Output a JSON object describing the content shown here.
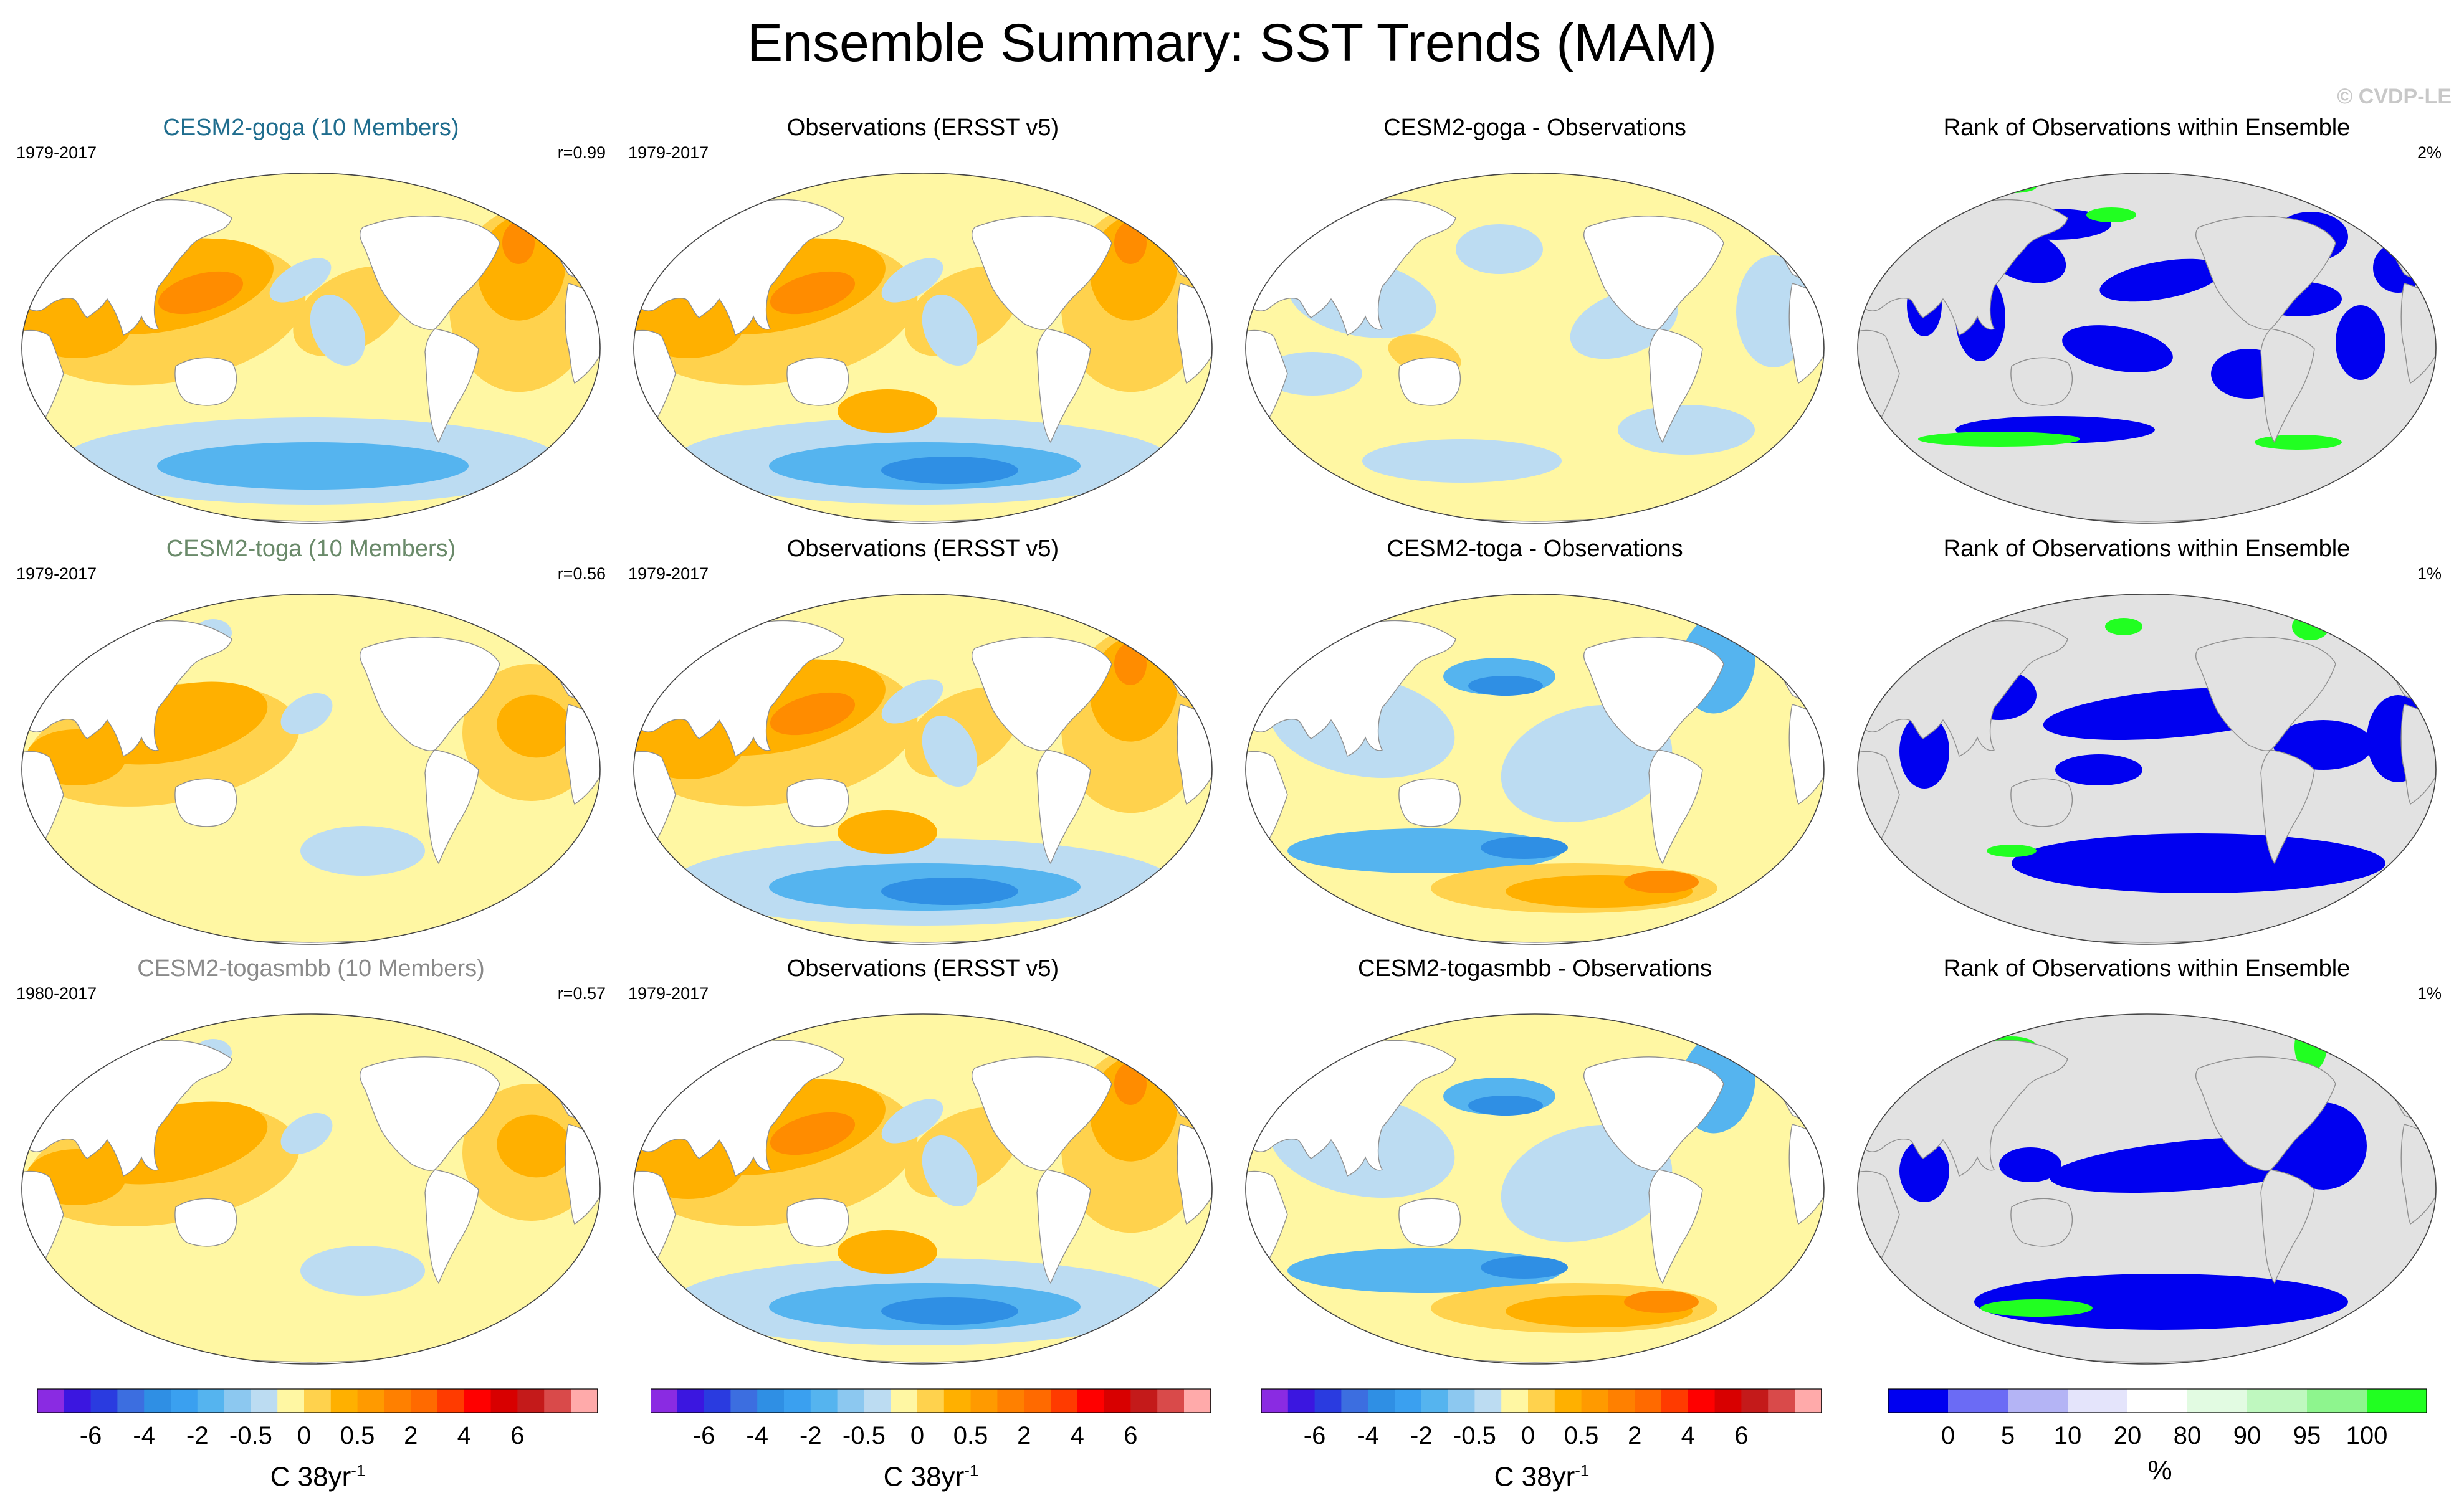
{
  "title": "Ensemble Summary: SST Trends (MAM)",
  "watermark": "© CVDP-LE",
  "colors": {
    "ocean_base": "#fff7a3",
    "warm_light": "#ffd24d",
    "warm_mid": "#ffb000",
    "warm_deep": "#ff8c00",
    "warm_hot": "#ff6a00",
    "cool_light": "#bcdcf2",
    "cool_mid": "#55b4ef",
    "cool_deep": "#2f8fe4",
    "rank_land": "#e2e2e2",
    "rank_low": "#0000f0",
    "rank_high": "#21ff21",
    "coast": "#8f8f8f"
  },
  "rows": [
    {
      "panels": [
        {
          "title": "CESM2-goga (10 Members)",
          "title_color": "#1f6d8e",
          "left": "1979-2017",
          "right": "r=0.99",
          "kind": "trend",
          "pattern": "model_warm"
        },
        {
          "title": "Observations (ERSST v5)",
          "title_color": "#000000",
          "left": "1979-2017",
          "right": "",
          "kind": "trend",
          "pattern": "obs"
        },
        {
          "title": "CESM2-goga - Observations",
          "title_color": "#000000",
          "left": "",
          "right": "",
          "kind": "trend",
          "pattern": "diff_small"
        },
        {
          "title": "Rank of Observations within Ensemble",
          "title_color": "#000000",
          "left": "",
          "right": "2%",
          "kind": "rank",
          "pattern": "rank_a"
        }
      ]
    },
    {
      "panels": [
        {
          "title": "CESM2-toga (10 Members)",
          "title_color": "#6a8a6a",
          "left": "1979-2017",
          "right": "r=0.56",
          "kind": "trend",
          "pattern": "model_mild"
        },
        {
          "title": "Observations (ERSST v5)",
          "title_color": "#000000",
          "left": "1979-2017",
          "right": "",
          "kind": "trend",
          "pattern": "obs"
        },
        {
          "title": "CESM2-toga - Observations",
          "title_color": "#000000",
          "left": "",
          "right": "",
          "kind": "trend",
          "pattern": "diff_large"
        },
        {
          "title": "Rank of Observations within Ensemble",
          "title_color": "#000000",
          "left": "",
          "right": "1%",
          "kind": "rank",
          "pattern": "rank_b"
        }
      ]
    },
    {
      "panels": [
        {
          "title": "CESM2-togasmbb (10 Members)",
          "title_color": "#8a8a8a",
          "left": "1980-2017",
          "right": "r=0.57",
          "kind": "trend",
          "pattern": "model_mild"
        },
        {
          "title": "Observations (ERSST v5)",
          "title_color": "#000000",
          "left": "1979-2017",
          "right": "",
          "kind": "trend",
          "pattern": "obs"
        },
        {
          "title": "CESM2-togasmbb - Observations",
          "title_color": "#000000",
          "left": "",
          "right": "",
          "kind": "trend",
          "pattern": "diff_large"
        },
        {
          "title": "Rank of Observations within Ensemble",
          "title_color": "#000000",
          "left": "",
          "right": "1%",
          "kind": "rank",
          "pattern": "rank_c"
        }
      ]
    }
  ],
  "colorbars": [
    {
      "kind": "trend",
      "unit": "C 38yr",
      "unit_sup": "-1",
      "colors": [
        "#8a2be2",
        "#3b16e0",
        "#2a3be0",
        "#3c6ee0",
        "#2f8fe4",
        "#3aa0f0",
        "#55b4ef",
        "#8cc8f0",
        "#bcdcf2",
        "#fff7a3",
        "#ffd24d",
        "#ffb000",
        "#ff9a00",
        "#ff8000",
        "#ff6a00",
        "#ff3b00",
        "#ff0000",
        "#d80000",
        "#c41a1a",
        "#d94a4a",
        "#ffaaaa"
      ],
      "ticks": [
        {
          "label": "-6",
          "boundary": 2
        },
        {
          "label": "-4",
          "boundary": 4
        },
        {
          "label": "-2",
          "boundary": 6
        },
        {
          "label": "-0.5",
          "boundary": 8
        },
        {
          "label": "0",
          "boundary": 10
        },
        {
          "label": "0.5",
          "boundary": 12
        },
        {
          "label": "2",
          "boundary": 14
        },
        {
          "label": "4",
          "boundary": 16
        },
        {
          "label": "6",
          "boundary": 18
        }
      ]
    },
    {
      "kind": "trend",
      "unit": "C 38yr",
      "unit_sup": "-1",
      "colors": [
        "#8a2be2",
        "#3b16e0",
        "#2a3be0",
        "#3c6ee0",
        "#2f8fe4",
        "#3aa0f0",
        "#55b4ef",
        "#8cc8f0",
        "#bcdcf2",
        "#fff7a3",
        "#ffd24d",
        "#ffb000",
        "#ff9a00",
        "#ff8000",
        "#ff6a00",
        "#ff3b00",
        "#ff0000",
        "#d80000",
        "#c41a1a",
        "#d94a4a",
        "#ffaaaa"
      ],
      "ticks": [
        {
          "label": "-6",
          "boundary": 2
        },
        {
          "label": "-4",
          "boundary": 4
        },
        {
          "label": "-2",
          "boundary": 6
        },
        {
          "label": "-0.5",
          "boundary": 8
        },
        {
          "label": "0",
          "boundary": 10
        },
        {
          "label": "0.5",
          "boundary": 12
        },
        {
          "label": "2",
          "boundary": 14
        },
        {
          "label": "4",
          "boundary": 16
        },
        {
          "label": "6",
          "boundary": 18
        }
      ]
    },
    {
      "kind": "trend",
      "unit": "C 38yr",
      "unit_sup": "-1",
      "colors": [
        "#8a2be2",
        "#3b16e0",
        "#2a3be0",
        "#3c6ee0",
        "#2f8fe4",
        "#3aa0f0",
        "#55b4ef",
        "#8cc8f0",
        "#bcdcf2",
        "#fff7a3",
        "#ffd24d",
        "#ffb000",
        "#ff9a00",
        "#ff8000",
        "#ff6a00",
        "#ff3b00",
        "#ff0000",
        "#d80000",
        "#c41a1a",
        "#d94a4a",
        "#ffaaaa"
      ],
      "ticks": [
        {
          "label": "-6",
          "boundary": 2
        },
        {
          "label": "-4",
          "boundary": 4
        },
        {
          "label": "-2",
          "boundary": 6
        },
        {
          "label": "-0.5",
          "boundary": 8
        },
        {
          "label": "0",
          "boundary": 10
        },
        {
          "label": "0.5",
          "boundary": 12
        },
        {
          "label": "2",
          "boundary": 14
        },
        {
          "label": "4",
          "boundary": 16
        },
        {
          "label": "6",
          "boundary": 18
        }
      ]
    },
    {
      "kind": "rank",
      "unit": "%",
      "unit_sup": "",
      "colors": [
        "#0000f0",
        "#6b6bf5",
        "#b4b4f5",
        "#e4e4fb",
        "#ffffff",
        "#e2fbe2",
        "#bff8bf",
        "#8ef58e",
        "#21ff21"
      ],
      "ticks": [
        {
          "label": "0",
          "boundary": 1
        },
        {
          "label": "5",
          "boundary": 2
        },
        {
          "label": "10",
          "boundary": 3
        },
        {
          "label": "20",
          "boundary": 4
        },
        {
          "label": "80",
          "boundary": 5
        },
        {
          "label": "90",
          "boundary": 6
        },
        {
          "label": "95",
          "boundary": 7
        },
        {
          "label": "100",
          "boundary": 8
        }
      ]
    }
  ]
}
